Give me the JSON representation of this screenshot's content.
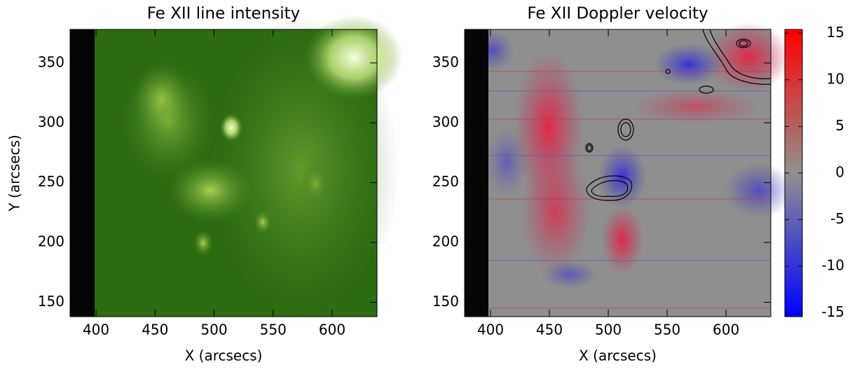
{
  "chart_data": [
    {
      "type": "heatmap",
      "title": "Fe XII line intensity",
      "x_label": "X (arcsecs)",
      "y_label": "Y (arcsecs)",
      "xlim": [
        378,
        638
      ],
      "ylim": [
        138,
        378
      ],
      "xticks": [
        400,
        450,
        500,
        550,
        600
      ],
      "yticks": [
        150,
        200,
        250,
        300,
        350
      ],
      "colormap": "green"
    },
    {
      "type": "heatmap",
      "title": "Fe XII Doppler velocity",
      "x_label": "X (arcsecs)",
      "xlim": [
        378,
        638
      ],
      "ylim": [
        138,
        378
      ],
      "xticks": [
        400,
        450,
        500,
        550,
        600
      ],
      "yticks": [
        150,
        200,
        250,
        300,
        350
      ],
      "colormap": "blue-gray-red",
      "colorbar": {
        "lim": [
          -15.4,
          15.4
        ],
        "ticks": [
          -15,
          -10,
          -5,
          0,
          5,
          10,
          15
        ]
      }
    }
  ]
}
